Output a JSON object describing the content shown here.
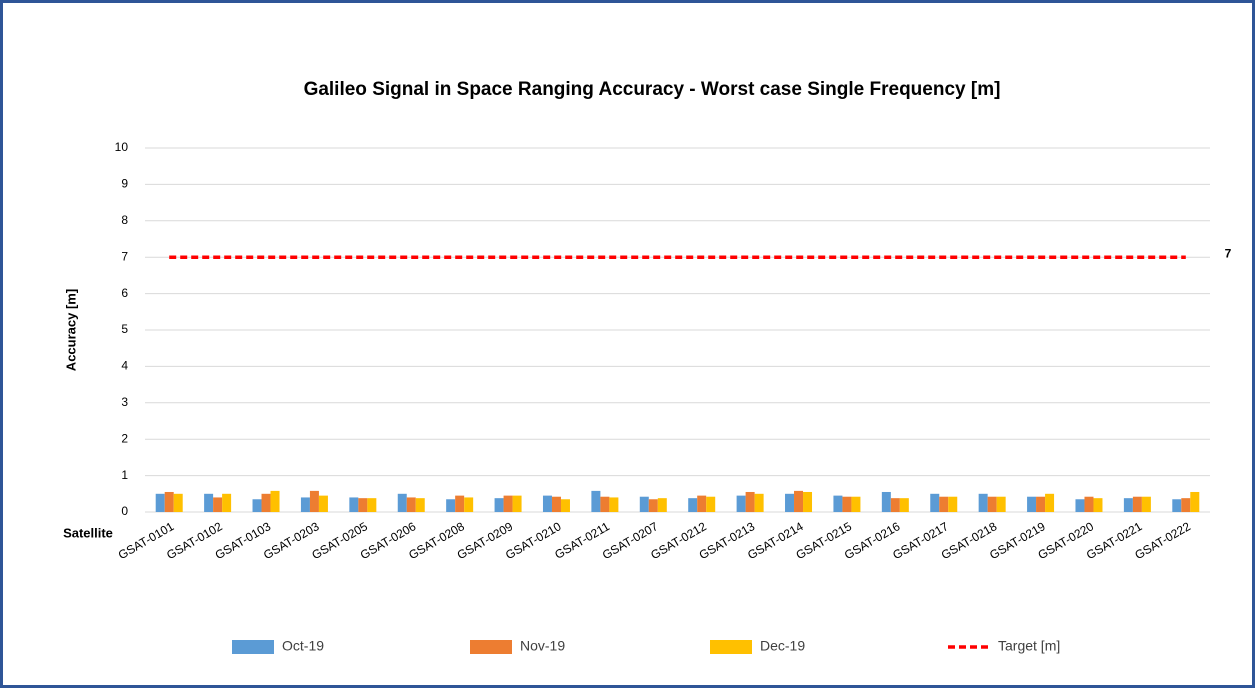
{
  "chart_data": {
    "type": "bar",
    "title": "Galileo Signal in Space Ranging Accuracy - Worst case Single Frequency [m]",
    "y_label": "Accuracy  [m]",
    "x_label": "Satellite",
    "categories": [
      "GSAT-0101",
      "GSAT-0102",
      "GSAT-0103",
      "GSAT-0203",
      "GSAT-0205",
      "GSAT-0206",
      "GSAT-0208",
      "GSAT-0209",
      "GSAT-0210",
      "GSAT-0211",
      "GSAT-0207",
      "GSAT-0212",
      "GSAT-0213",
      "GSAT-0214",
      "GSAT-0215",
      "GSAT-0216",
      "GSAT-0217",
      "GSAT-0218",
      "GSAT-0219",
      "GSAT-0220",
      "GSAT-0221",
      "GSAT-0222"
    ],
    "series": [
      {
        "name": "Oct-19",
        "color": "#5b9bd5",
        "values": [
          0.5,
          0.5,
          0.35,
          0.4,
          0.4,
          0.5,
          0.35,
          0.38,
          0.45,
          0.58,
          0.42,
          0.38,
          0.45,
          0.5,
          0.45,
          0.55,
          0.5,
          0.5,
          0.42,
          0.35,
          0.38,
          0.35
        ]
      },
      {
        "name": "Nov-19",
        "color": "#ed7d31",
        "values": [
          0.55,
          0.4,
          0.5,
          0.58,
          0.38,
          0.4,
          0.45,
          0.45,
          0.42,
          0.42,
          0.35,
          0.45,
          0.55,
          0.58,
          0.42,
          0.38,
          0.42,
          0.42,
          0.42,
          0.42,
          0.42,
          0.38
        ]
      },
      {
        "name": "Dec-19",
        "color": "#ffc000",
        "values": [
          0.5,
          0.5,
          0.58,
          0.45,
          0.38,
          0.38,
          0.4,
          0.45,
          0.35,
          0.4,
          0.38,
          0.42,
          0.5,
          0.55,
          0.42,
          0.38,
          0.42,
          0.42,
          0.5,
          0.38,
          0.42,
          0.55
        ]
      },
      {
        "name": "Target [m]",
        "color": "#ff0000",
        "kind": "dashed-line",
        "values": [
          7,
          7,
          7,
          7,
          7,
          7,
          7,
          7,
          7,
          7,
          7,
          7,
          7,
          7,
          7,
          7,
          7,
          7,
          7,
          7,
          7,
          7
        ]
      }
    ],
    "ylim": [
      0,
      10
    ],
    "yticks": [
      0,
      1,
      2,
      3,
      4,
      5,
      6,
      7,
      8,
      9,
      10
    ],
    "grid": true,
    "legend": "bottom"
  }
}
